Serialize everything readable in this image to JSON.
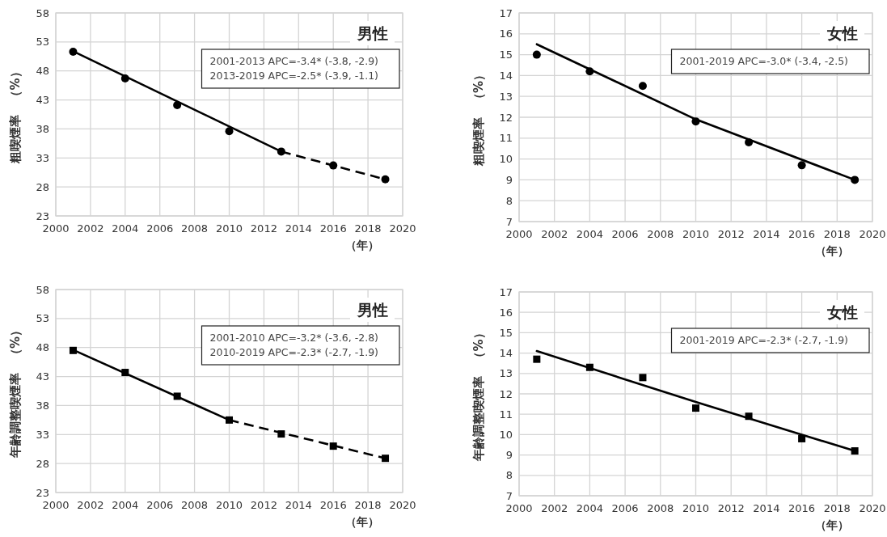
{
  "chart_data": [
    {
      "type": "line",
      "title": "男性",
      "ylabel": "粗喫煙率　（%）",
      "xlabel": "（年）",
      "annotations": [
        "2001-2013 APC=-3.4* (-3.8, -2.9)",
        "2013-2019 APC=-2.5* (-3.9, -1.1)"
      ],
      "xlim": [
        2000,
        2020
      ],
      "xticks": [
        2000,
        2002,
        2004,
        2006,
        2008,
        2010,
        2012,
        2014,
        2016,
        2018,
        2020
      ],
      "ylim": [
        23,
        58
      ],
      "yticks": [
        23,
        28,
        33,
        38,
        43,
        48,
        53,
        58
      ],
      "grid": true,
      "series": [
        {
          "type": "scatter",
          "marker": "circle",
          "color": "#000000",
          "x": [
            2001,
            2004,
            2007,
            2010,
            2013,
            2016,
            2019
          ],
          "values": [
            51.3,
            46.7,
            42.1,
            37.6,
            34.1,
            31.7,
            29.3
          ]
        },
        {
          "type": "line",
          "line_style": "solid",
          "color": "#000000",
          "x": [
            2001,
            2013
          ],
          "values": [
            51.4,
            34.1
          ]
        },
        {
          "type": "line",
          "line_style": "dashed",
          "color": "#000000",
          "x": [
            2013,
            2019
          ],
          "values": [
            34.1,
            29.3
          ]
        }
      ]
    },
    {
      "type": "line",
      "title": "女性",
      "ylabel": "粗喫煙率　（%）",
      "xlabel": "（年）",
      "annotations": [
        "2001-2019 APC=-3.0* (-3.4, -2.5)"
      ],
      "xlim": [
        2000,
        2020
      ],
      "xticks": [
        2000,
        2002,
        2004,
        2006,
        2008,
        2010,
        2012,
        2014,
        2016,
        2018,
        2020
      ],
      "ylim": [
        7,
        17
      ],
      "yticks": [
        7,
        8,
        9,
        10,
        11,
        12,
        13,
        14,
        15,
        16,
        17
      ],
      "grid": true,
      "series": [
        {
          "type": "scatter",
          "marker": "circle",
          "color": "#000000",
          "x": [
            2001,
            2004,
            2007,
            2010,
            2013,
            2016,
            2019
          ],
          "values": [
            15.0,
            14.2,
            13.5,
            11.8,
            10.8,
            9.7,
            9.0
          ]
        },
        {
          "type": "line",
          "line_style": "solid",
          "color": "#000000",
          "x": [
            2001,
            2010,
            2019
          ],
          "values": [
            15.5,
            11.9,
            9.0
          ]
        }
      ]
    },
    {
      "type": "line",
      "title": "男性",
      "ylabel": "年齢調整喫煙率　（%）",
      "xlabel": "（年）",
      "annotations": [
        "2001-2010 APC=-3.2* (-3.6, -2.8)",
        "2010-2019 APC=-2.3* (-2.7, -1.9)"
      ],
      "xlim": [
        2000,
        2020
      ],
      "xticks": [
        2000,
        2002,
        2004,
        2006,
        2008,
        2010,
        2012,
        2014,
        2016,
        2018,
        2020
      ],
      "ylim": [
        23,
        58
      ],
      "yticks": [
        23,
        28,
        33,
        38,
        43,
        48,
        53,
        58
      ],
      "grid": true,
      "series": [
        {
          "type": "scatter",
          "marker": "square",
          "color": "#000000",
          "x": [
            2001,
            2004,
            2007,
            2010,
            2013,
            2016,
            2019
          ],
          "values": [
            47.5,
            43.7,
            39.6,
            35.5,
            33.1,
            31.0,
            28.9
          ]
        },
        {
          "type": "line",
          "line_style": "solid",
          "color": "#000000",
          "x": [
            2001,
            2010
          ],
          "values": [
            47.6,
            35.5
          ]
        },
        {
          "type": "line",
          "line_style": "dashed",
          "color": "#000000",
          "x": [
            2010,
            2019
          ],
          "values": [
            35.5,
            28.9
          ]
        }
      ]
    },
    {
      "type": "line",
      "title": "女性",
      "ylabel": "年齢調整喫煙率　（%）",
      "xlabel": "（年）",
      "annotations": [
        "2001-2019 APC=-2.3* (-2.7, -1.9)"
      ],
      "xlim": [
        2000,
        2020
      ],
      "xticks": [
        2000,
        2002,
        2004,
        2006,
        2008,
        2010,
        2012,
        2014,
        2016,
        2018,
        2020
      ],
      "ylim": [
        7,
        17
      ],
      "yticks": [
        7,
        8,
        9,
        10,
        11,
        12,
        13,
        14,
        15,
        16,
        17
      ],
      "grid": true,
      "series": [
        {
          "type": "scatter",
          "marker": "square",
          "color": "#000000",
          "x": [
            2001,
            2004,
            2007,
            2010,
            2013,
            2016,
            2019
          ],
          "values": [
            13.7,
            13.3,
            12.8,
            11.3,
            10.9,
            9.8,
            9.2
          ]
        },
        {
          "type": "line",
          "line_style": "solid",
          "color": "#000000",
          "x": [
            2001,
            2010,
            2019
          ],
          "values": [
            14.1,
            11.6,
            9.2
          ]
        }
      ]
    }
  ]
}
